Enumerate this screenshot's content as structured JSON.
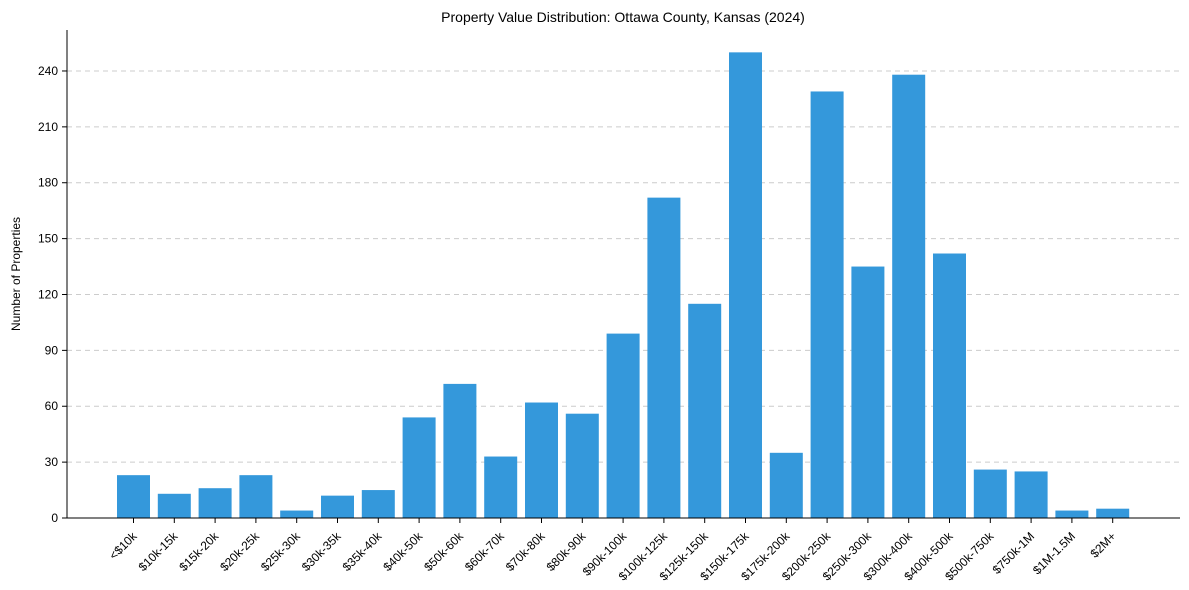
{
  "chart_data": {
    "type": "bar",
    "title": "Property Value Distribution: Ottawa County, Kansas (2024)",
    "xlabel": "",
    "ylabel": "Number of Properties",
    "ylim": [
      0,
      262
    ],
    "yticks": [
      0,
      30,
      60,
      90,
      120,
      150,
      180,
      210,
      240
    ],
    "grid": "horizontal-dashed",
    "bar_color": "#3498db",
    "categories": [
      "<$10k",
      "$10k-15k",
      "$15k-20k",
      "$20k-25k",
      "$25k-30k",
      "$30k-35k",
      "$35k-40k",
      "$40k-50k",
      "$50k-60k",
      "$60k-70k",
      "$70k-80k",
      "$80k-90k",
      "$90k-100k",
      "$100k-125k",
      "$125k-150k",
      "$150k-175k",
      "$175k-200k",
      "$200k-250k",
      "$250k-300k",
      "$300k-400k",
      "$400k-500k",
      "$500k-750k",
      "$750k-1M",
      "$1M-1.5M",
      "$2M+"
    ],
    "values": [
      23,
      13,
      16,
      23,
      4,
      12,
      15,
      54,
      72,
      33,
      62,
      56,
      99,
      172,
      115,
      250,
      35,
      229,
      135,
      238,
      142,
      26,
      25,
      4,
      5
    ]
  }
}
